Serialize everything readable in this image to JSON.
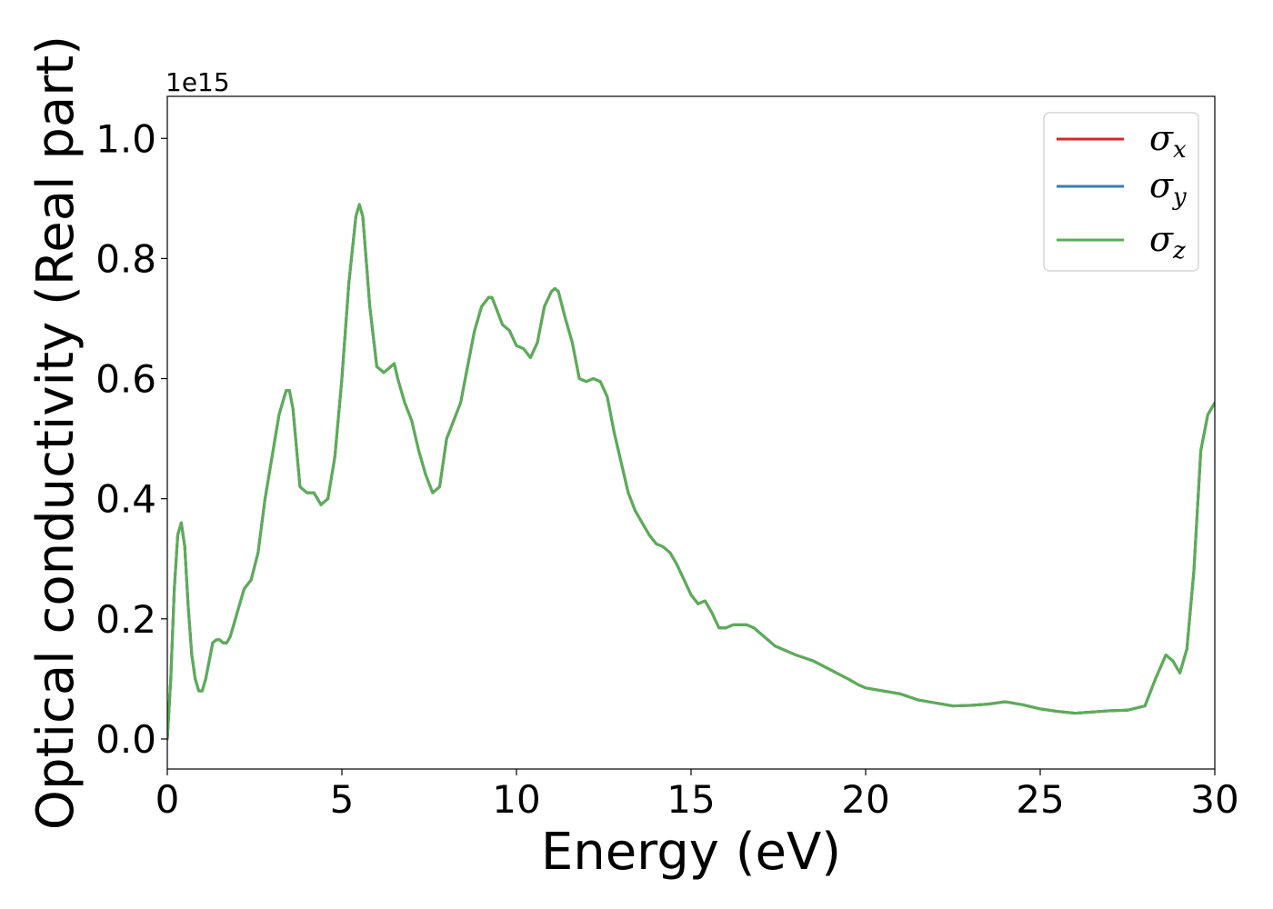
{
  "chart_data": {
    "type": "line",
    "title": "",
    "xlabel": "Energy (eV)",
    "ylabel": "Optical conductivity (Real part)",
    "y_offset_label": "1e15",
    "xlim": [
      0,
      30
    ],
    "ylim": [
      -0.05,
      1.07
    ],
    "x_ticks": [
      0,
      5,
      10,
      15,
      20,
      25,
      30
    ],
    "y_ticks": [
      0.0,
      0.2,
      0.4,
      0.6,
      0.8,
      1.0
    ],
    "x_tick_labels": [
      "0",
      "5",
      "10",
      "15",
      "20",
      "25",
      "30"
    ],
    "y_tick_labels": [
      "0.0",
      "0.2",
      "0.4",
      "0.6",
      "0.8",
      "1.0"
    ],
    "grid": false,
    "legend_position": "top-right",
    "x": [
      0,
      0.1,
      0.2,
      0.3,
      0.4,
      0.5,
      0.6,
      0.7,
      0.8,
      0.9,
      1.0,
      1.1,
      1.2,
      1.3,
      1.4,
      1.5,
      1.6,
      1.7,
      1.8,
      1.9,
      2.0,
      2.2,
      2.4,
      2.6,
      2.8,
      3.0,
      3.2,
      3.4,
      3.5,
      3.6,
      3.8,
      4.0,
      4.2,
      4.4,
      4.6,
      4.8,
      5.0,
      5.2,
      5.4,
      5.5,
      5.6,
      5.8,
      6.0,
      6.2,
      6.4,
      6.5,
      6.6,
      6.8,
      7.0,
      7.2,
      7.4,
      7.6,
      7.8,
      8.0,
      8.2,
      8.4,
      8.6,
      8.8,
      9.0,
      9.2,
      9.3,
      9.4,
      9.6,
      9.8,
      10.0,
      10.2,
      10.4,
      10.6,
      10.8,
      11.0,
      11.1,
      11.2,
      11.4,
      11.6,
      11.8,
      12.0,
      12.2,
      12.4,
      12.6,
      12.8,
      13.0,
      13.2,
      13.4,
      13.6,
      13.8,
      14.0,
      14.2,
      14.4,
      14.6,
      14.8,
      15.0,
      15.2,
      15.4,
      15.6,
      15.8,
      16.0,
      16.2,
      16.4,
      16.6,
      16.8,
      17.0,
      17.2,
      17.4,
      17.6,
      17.8,
      18.0,
      18.5,
      19.0,
      19.5,
      19.8,
      20.0,
      20.5,
      21.0,
      21.5,
      22.0,
      22.5,
      23.0,
      23.5,
      24.0,
      24.5,
      25.0,
      25.5,
      26.0,
      26.5,
      27.0,
      27.5,
      28.0,
      28.3,
      28.6,
      28.8,
      29.0,
      29.2,
      29.4,
      29.6,
      29.8,
      30.0
    ],
    "series": [
      {
        "name": "σ_x",
        "label_base": "σ",
        "label_sub": "x",
        "color": "#d62728",
        "values": [
          0.0,
          0.1,
          0.25,
          0.34,
          0.36,
          0.32,
          0.22,
          0.14,
          0.1,
          0.08,
          0.08,
          0.1,
          0.13,
          0.16,
          0.165,
          0.165,
          0.16,
          0.16,
          0.17,
          0.19,
          0.21,
          0.25,
          0.265,
          0.31,
          0.4,
          0.47,
          0.54,
          0.58,
          0.58,
          0.55,
          0.42,
          0.41,
          0.41,
          0.39,
          0.4,
          0.47,
          0.6,
          0.76,
          0.87,
          0.89,
          0.87,
          0.72,
          0.62,
          0.61,
          0.62,
          0.625,
          0.6,
          0.56,
          0.53,
          0.48,
          0.44,
          0.41,
          0.42,
          0.5,
          0.53,
          0.56,
          0.62,
          0.68,
          0.72,
          0.735,
          0.735,
          0.72,
          0.69,
          0.68,
          0.655,
          0.65,
          0.635,
          0.66,
          0.72,
          0.745,
          0.75,
          0.745,
          0.7,
          0.66,
          0.6,
          0.595,
          0.6,
          0.595,
          0.57,
          0.51,
          0.46,
          0.41,
          0.38,
          0.36,
          0.34,
          0.325,
          0.32,
          0.31,
          0.29,
          0.265,
          0.24,
          0.225,
          0.23,
          0.21,
          0.185,
          0.185,
          0.19,
          0.19,
          0.19,
          0.185,
          0.175,
          0.165,
          0.155,
          0.15,
          0.145,
          0.14,
          0.13,
          0.115,
          0.1,
          0.09,
          0.085,
          0.08,
          0.075,
          0.065,
          0.06,
          0.055,
          0.056,
          0.058,
          0.062,
          0.057,
          0.05,
          0.046,
          0.043,
          0.045,
          0.047,
          0.048,
          0.055,
          0.1,
          0.14,
          0.13,
          0.11,
          0.15,
          0.28,
          0.48,
          0.54,
          0.56
        ]
      },
      {
        "name": "σ_y",
        "label_base": "σ",
        "label_sub": "y",
        "color": "#3a7ab5",
        "values": [
          0.0,
          0.1,
          0.25,
          0.34,
          0.36,
          0.32,
          0.22,
          0.14,
          0.1,
          0.08,
          0.08,
          0.1,
          0.13,
          0.16,
          0.165,
          0.165,
          0.16,
          0.16,
          0.17,
          0.19,
          0.21,
          0.25,
          0.265,
          0.31,
          0.4,
          0.47,
          0.54,
          0.58,
          0.58,
          0.55,
          0.42,
          0.41,
          0.41,
          0.39,
          0.4,
          0.47,
          0.6,
          0.76,
          0.87,
          0.89,
          0.87,
          0.72,
          0.62,
          0.61,
          0.62,
          0.625,
          0.6,
          0.56,
          0.53,
          0.48,
          0.44,
          0.41,
          0.42,
          0.5,
          0.53,
          0.56,
          0.62,
          0.68,
          0.72,
          0.735,
          0.735,
          0.72,
          0.69,
          0.68,
          0.655,
          0.65,
          0.635,
          0.66,
          0.72,
          0.745,
          0.75,
          0.745,
          0.7,
          0.66,
          0.6,
          0.595,
          0.6,
          0.595,
          0.57,
          0.51,
          0.46,
          0.41,
          0.38,
          0.36,
          0.34,
          0.325,
          0.32,
          0.31,
          0.29,
          0.265,
          0.24,
          0.225,
          0.23,
          0.21,
          0.185,
          0.185,
          0.19,
          0.19,
          0.19,
          0.185,
          0.175,
          0.165,
          0.155,
          0.15,
          0.145,
          0.14,
          0.13,
          0.115,
          0.1,
          0.09,
          0.085,
          0.08,
          0.075,
          0.065,
          0.06,
          0.055,
          0.056,
          0.058,
          0.062,
          0.057,
          0.05,
          0.046,
          0.043,
          0.045,
          0.047,
          0.048,
          0.055,
          0.1,
          0.14,
          0.13,
          0.11,
          0.15,
          0.28,
          0.48,
          0.54,
          0.56
        ]
      },
      {
        "name": "σ_z",
        "label_base": "σ",
        "label_sub": "z",
        "color": "#5aae55",
        "values": [
          0.0,
          0.1,
          0.25,
          0.34,
          0.36,
          0.32,
          0.22,
          0.14,
          0.1,
          0.08,
          0.08,
          0.1,
          0.13,
          0.16,
          0.165,
          0.165,
          0.16,
          0.16,
          0.17,
          0.19,
          0.21,
          0.25,
          0.265,
          0.31,
          0.4,
          0.47,
          0.54,
          0.58,
          0.58,
          0.55,
          0.42,
          0.41,
          0.41,
          0.39,
          0.4,
          0.47,
          0.6,
          0.76,
          0.87,
          0.89,
          0.87,
          0.72,
          0.62,
          0.61,
          0.62,
          0.625,
          0.6,
          0.56,
          0.53,
          0.48,
          0.44,
          0.41,
          0.42,
          0.5,
          0.53,
          0.56,
          0.62,
          0.68,
          0.72,
          0.735,
          0.735,
          0.72,
          0.69,
          0.68,
          0.655,
          0.65,
          0.635,
          0.66,
          0.72,
          0.745,
          0.75,
          0.745,
          0.7,
          0.66,
          0.6,
          0.595,
          0.6,
          0.595,
          0.57,
          0.51,
          0.46,
          0.41,
          0.38,
          0.36,
          0.34,
          0.325,
          0.32,
          0.31,
          0.29,
          0.265,
          0.24,
          0.225,
          0.23,
          0.21,
          0.185,
          0.185,
          0.19,
          0.19,
          0.19,
          0.185,
          0.175,
          0.165,
          0.155,
          0.15,
          0.145,
          0.14,
          0.13,
          0.115,
          0.1,
          0.09,
          0.085,
          0.08,
          0.075,
          0.065,
          0.06,
          0.055,
          0.056,
          0.058,
          0.062,
          0.057,
          0.05,
          0.046,
          0.043,
          0.045,
          0.047,
          0.048,
          0.055,
          0.1,
          0.14,
          0.13,
          0.11,
          0.15,
          0.28,
          0.48,
          0.54,
          0.56
        ]
      }
    ]
  }
}
